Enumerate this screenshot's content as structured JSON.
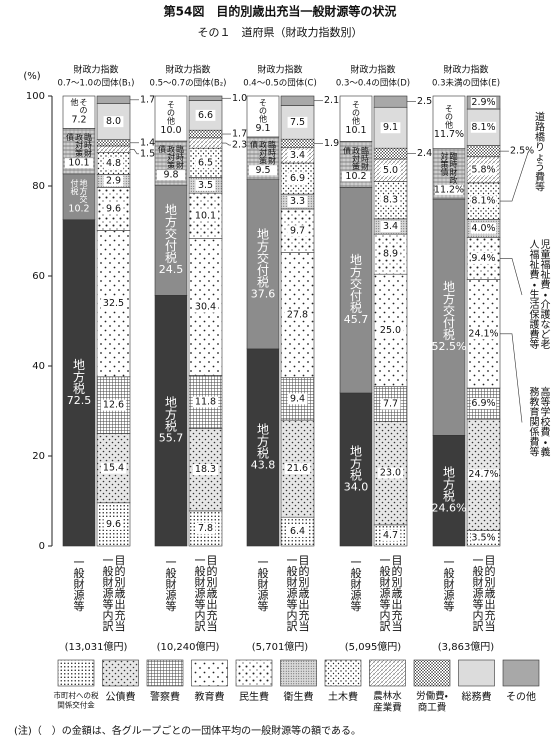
{
  "chart_data": {
    "type": "stacked_bar",
    "title": "第54図　目的別歳出充当一般財源等の状況",
    "subtitle": "その１　道府県（財政力指数別）",
    "y_label": "(%)",
    "ylim": [
      0,
      100
    ],
    "yticks": [
      0,
      20,
      40,
      60,
      80,
      100
    ],
    "general_series": [
      {
        "name": "地方税",
        "color": "#3c3c3c"
      },
      {
        "name": "地方交付税",
        "color": "#8c8c8c"
      },
      {
        "name": "臨時財政対策債",
        "color": "#cfcfcf"
      },
      {
        "name": "その他",
        "color": "#ffffff"
      }
    ],
    "purpose_series": [
      {
        "name": "市町村への税関係交付金",
        "color": "#ffffff"
      },
      {
        "name": "公債費",
        "color": "#e6e6e6"
      },
      {
        "name": "警察費",
        "color": "#ffffff"
      },
      {
        "name": "教育費",
        "color": "#ffffff"
      },
      {
        "name": "民生費",
        "color": "#ffffff"
      },
      {
        "name": "衛生費",
        "color": "#d9d9d9"
      },
      {
        "name": "土木費",
        "color": "#ffffff"
      },
      {
        "name": "農林水産業費",
        "color": "#ffffff"
      },
      {
        "name": "労働費・商工費",
        "color": "#ffffff"
      },
      {
        "name": "総務費",
        "color": "#dcdcdc"
      },
      {
        "name": "その他",
        "color": "#a8a8a8"
      }
    ],
    "bar_labels": [
      "一般財源等",
      "目的別歳出充当一般財源等内訳"
    ],
    "groups": [
      {
        "header": "財政力指数",
        "subheader": "0.7～1.0の団体(B₁)",
        "amount": "(13,031億円)",
        "general": {
          "values": [
            72.5,
            10.2,
            10.1,
            7.2
          ],
          "value_labels": [
            "72.5",
            "10.2",
            "10.1",
            "7.2"
          ]
        },
        "purpose": {
          "values": [
            9.6,
            15.4,
            12.6,
            32.5,
            9.6,
            2.9,
            4.8,
            1.5,
            1.4,
            8.0,
            1.7
          ],
          "value_labels": [
            "9.6",
            "15.4",
            "12.6",
            "32.5",
            "9.6",
            "2.9",
            "4.8",
            "1.5",
            "1.4",
            "8.0",
            "1.7"
          ]
        }
      },
      {
        "header": "財政力指数",
        "subheader": "0.5～0.7の団体(B₂)",
        "amount": "(10,240億円)",
        "general": {
          "values": [
            55.7,
            24.5,
            9.8,
            10.0
          ],
          "value_labels": [
            "55.7",
            "24.5",
            "9.8",
            "10.0"
          ]
        },
        "purpose": {
          "values": [
            7.8,
            18.3,
            11.8,
            30.4,
            10.1,
            3.5,
            6.5,
            2.3,
            1.7,
            6.6,
            1.0
          ],
          "value_labels": [
            "7.8",
            "18.3",
            "11.8",
            "30.4",
            "10.1",
            "3.5",
            "6.5",
            "2.3",
            "1.7",
            "6.6",
            "1.0"
          ]
        }
      },
      {
        "header": "財政力指数",
        "subheader": "0.4～0.5の団体(C)",
        "amount": "(5,701億円)",
        "general": {
          "values": [
            43.8,
            37.6,
            9.5,
            9.1
          ],
          "value_labels": [
            "43.8",
            "37.6",
            "9.5",
            "9.1"
          ]
        },
        "purpose": {
          "values": [
            6.4,
            21.6,
            9.4,
            27.8,
            9.7,
            3.3,
            6.9,
            3.4,
            1.9,
            7.5,
            2.1
          ],
          "value_labels": [
            "6.4",
            "21.6",
            "9.4",
            "27.8",
            "9.7",
            "3.3",
            "6.9",
            "3.4",
            "1.9",
            "7.5",
            "2.1"
          ]
        }
      },
      {
        "header": "財政力指数",
        "subheader": "0.3～0.4の団体(D)",
        "amount": "(5,095億円)",
        "general": {
          "values": [
            34.0,
            45.7,
            10.2,
            10.1
          ],
          "value_labels": [
            "34.0",
            "45.7",
            "10.2",
            "10.1"
          ]
        },
        "purpose": {
          "values": [
            4.7,
            23.0,
            7.7,
            25.0,
            8.9,
            3.4,
            8.3,
            5.0,
            2.4,
            9.1,
            2.5
          ],
          "value_labels": [
            "4.7",
            "23.0",
            "7.7",
            "25.0",
            "8.9",
            "3.4",
            "8.3",
            "5.0",
            "2.4",
            "9.1",
            "2.5"
          ]
        }
      },
      {
        "header": "財政力指数",
        "subheader": "0.3未満の団体(E)",
        "amount": "(3,863億円)",
        "general": {
          "values": [
            24.6,
            52.5,
            11.2,
            11.7
          ],
          "value_labels": [
            "24.6%",
            "52.5%",
            "11.2%",
            "11.7%"
          ]
        },
        "purpose": {
          "values": [
            3.5,
            24.7,
            6.9,
            24.1,
            9.4,
            4.0,
            8.1,
            5.8,
            2.5,
            8.1,
            2.9
          ],
          "value_labels": [
            "3.5%",
            "24.7%",
            "6.9%",
            "24.1%",
            "9.4%",
            "4.0%",
            "8.1%",
            "5.8%",
            "2.5%",
            "8.1%",
            "2.9%"
          ]
        }
      }
    ],
    "annotations": [
      "道路橋りょう費等",
      "児童福祉費・介護など老人福祉費・生活保護費等",
      "高等学校費・義務教育関係費等"
    ],
    "note": "(注)（　）の金額は、各グループごとの一団体平均の一般財源等の額である。"
  }
}
